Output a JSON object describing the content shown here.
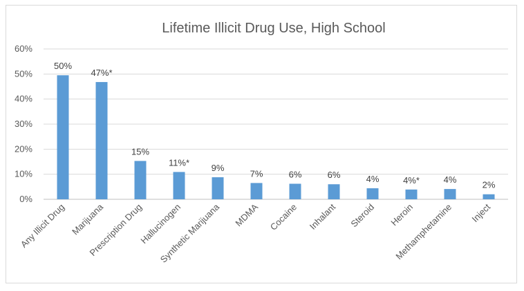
{
  "chart_data": {
    "type": "bar",
    "title": "Lifetime Illicit Drug Use, High School",
    "xlabel": "",
    "ylabel": "",
    "ylim": [
      0,
      60
    ],
    "yticks": [
      "0%",
      "10%",
      "20%",
      "30%",
      "40%",
      "50%",
      "60%"
    ],
    "grid": true,
    "legend": "none",
    "bar_color": "#5b9bd5",
    "categories": [
      "Any Illicit Drug",
      "Marijuana",
      "Prescription Drug",
      "Hallucinogen",
      "Synthetic Marijuana",
      "MDMA",
      "Cocaine",
      "Inhalant",
      "Steroid",
      "Heroin",
      "Methamphetamine",
      "Inject"
    ],
    "values": [
      49.5,
      46.8,
      15.3,
      10.9,
      8.8,
      6.5,
      6.2,
      6.0,
      4.4,
      3.9,
      4.1,
      2.0
    ],
    "data_labels": [
      "50%",
      "47%*",
      "15%",
      "11%*",
      "9%",
      "7%",
      "6%",
      "6%",
      "4%",
      "4%*",
      "4%",
      "2%"
    ]
  }
}
